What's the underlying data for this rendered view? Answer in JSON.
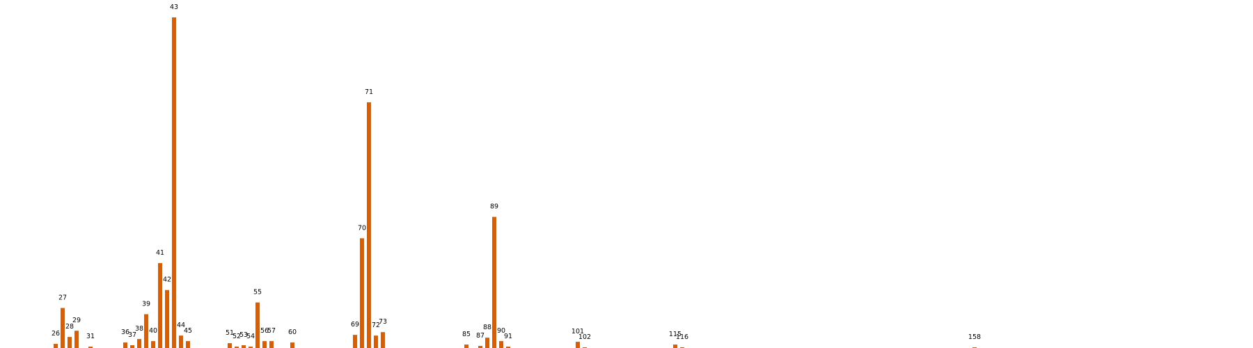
{
  "chart_data": {
    "type": "bar",
    "bar_color": "#d35f0a",
    "x_range": [
      18,
      198
    ],
    "ylim": [
      0,
      480
    ],
    "grid": false,
    "legend": "none",
    "points": [
      {
        "x": 26,
        "value": 6,
        "label": "26"
      },
      {
        "x": 27,
        "value": 58,
        "label": "27"
      },
      {
        "x": 28,
        "value": 16,
        "label": "28"
      },
      {
        "x": 29,
        "value": 25,
        "label": "29"
      },
      {
        "x": 31,
        "value": 2,
        "label": "31"
      },
      {
        "x": 36,
        "value": 8,
        "label": "36"
      },
      {
        "x": 37,
        "value": 4,
        "label": "37"
      },
      {
        "x": 38,
        "value": 13,
        "label": "38"
      },
      {
        "x": 39,
        "value": 49,
        "label": "39"
      },
      {
        "x": 40,
        "value": 10,
        "label": "40"
      },
      {
        "x": 41,
        "value": 123,
        "label": "41"
      },
      {
        "x": 42,
        "value": 84,
        "label": "42"
      },
      {
        "x": 43,
        "value": 479,
        "label": "43"
      },
      {
        "x": 44,
        "value": 18,
        "label": "44"
      },
      {
        "x": 45,
        "value": 10,
        "label": "45"
      },
      {
        "x": 51,
        "value": 7,
        "label": "51"
      },
      {
        "x": 52,
        "value": 2,
        "label": "52"
      },
      {
        "x": 53,
        "value": 4,
        "label": "53"
      },
      {
        "x": 54,
        "value": 2,
        "label": "54"
      },
      {
        "x": 55,
        "value": 66,
        "label": "55"
      },
      {
        "x": 56,
        "value": 10,
        "label": "56"
      },
      {
        "x": 57,
        "value": 10,
        "label": "57"
      },
      {
        "x": 60,
        "value": 8,
        "label": "60"
      },
      {
        "x": 69,
        "value": 19,
        "label": "69"
      },
      {
        "x": 70,
        "value": 159,
        "label": "70"
      },
      {
        "x": 71,
        "value": 356,
        "label": "71"
      },
      {
        "x": 72,
        "value": 18,
        "label": "72"
      },
      {
        "x": 73,
        "value": 23,
        "label": "73"
      },
      {
        "x": 85,
        "value": 5,
        "label": "85"
      },
      {
        "x": 87,
        "value": 3,
        "label": "87"
      },
      {
        "x": 88,
        "value": 15,
        "label": "88"
      },
      {
        "x": 89,
        "value": 190,
        "label": "89"
      },
      {
        "x": 90,
        "value": 10,
        "label": "90"
      },
      {
        "x": 91,
        "value": 2,
        "label": "91"
      },
      {
        "x": 101,
        "value": 9,
        "label": "101"
      },
      {
        "x": 102,
        "value": 1,
        "label": "102"
      },
      {
        "x": 115,
        "value": 5,
        "label": "115"
      },
      {
        "x": 116,
        "value": 1,
        "label": "116"
      },
      {
        "x": 158,
        "value": 1,
        "label": "158"
      }
    ]
  }
}
